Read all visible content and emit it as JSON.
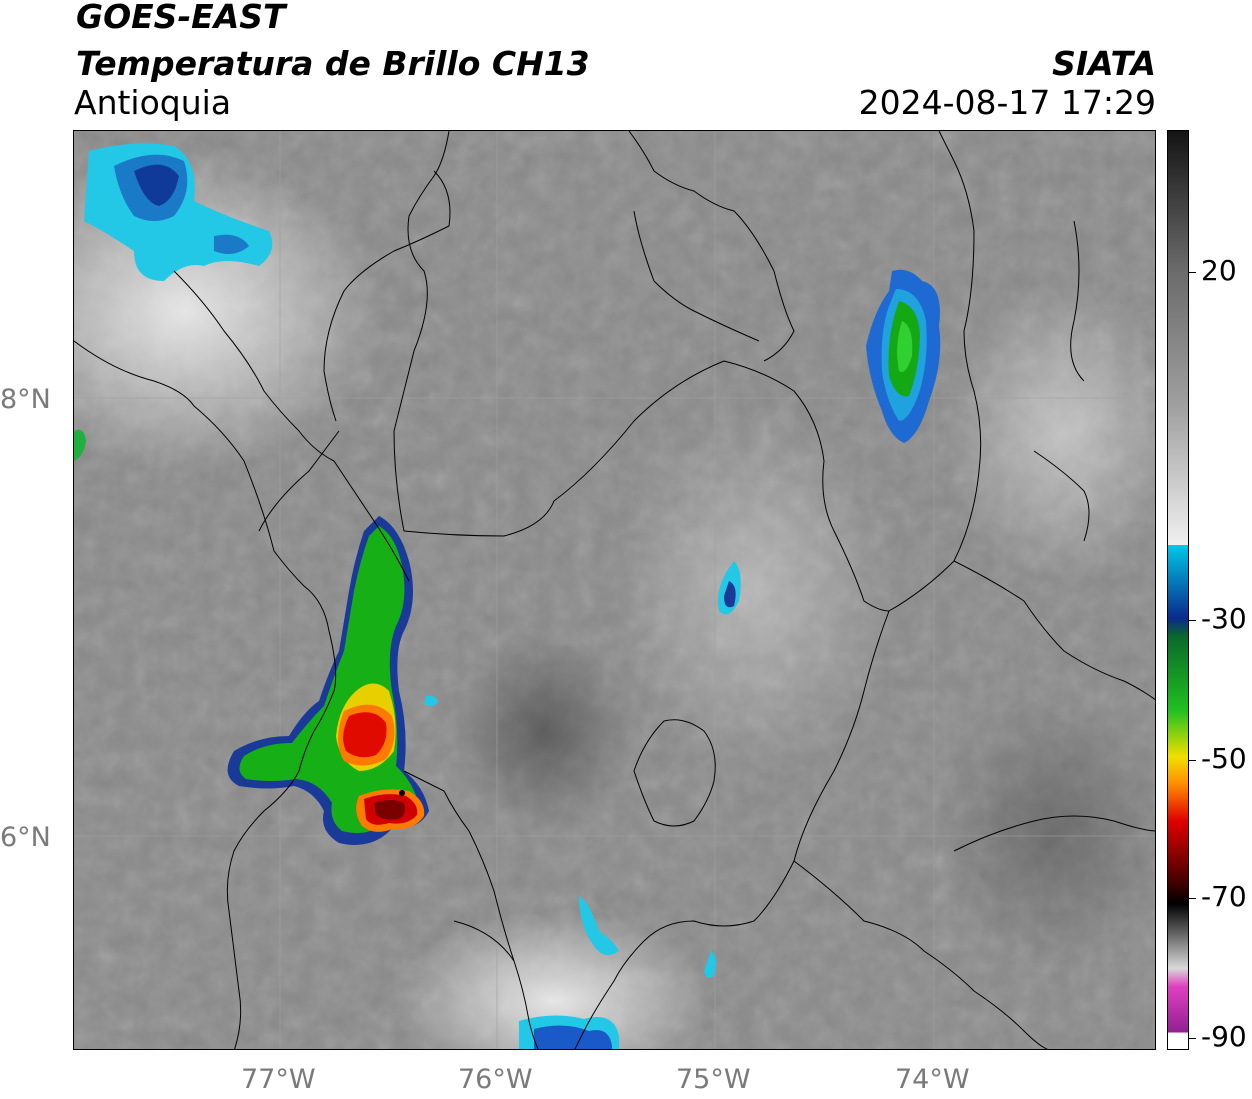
{
  "header": {
    "satellite": "GOES-EAST",
    "product": "Temperatura de Brillo CH13",
    "region": "Antioquia",
    "agency": "SIATA",
    "datetime": "2024-08-17 17:29"
  },
  "map": {
    "lat_labels": [
      "8°N",
      "6°N"
    ],
    "lon_labels": [
      "77°W",
      "76°W",
      "75°W",
      "74°W"
    ],
    "extent": {
      "lon_min": -77.95,
      "lon_max": -73.0,
      "lat_min": 5.03,
      "lat_max": 9.23
    },
    "gridlines": true,
    "features": [
      "cloud-top-temperature-field",
      "administrative-boundaries",
      "coastline"
    ],
    "convective_cells": [
      {
        "name": "cell-west-antioquia",
        "min_temp_c": -65
      },
      {
        "name": "cell-northeast",
        "min_temp_c": -40
      },
      {
        "name": "cell-northwest-coast",
        "min_temp_c": -35
      }
    ]
  },
  "colorbar": {
    "labels": [
      "20",
      "-30",
      "-50",
      "-70",
      "-90"
    ],
    "units": "",
    "colors": {
      "warm_dark": "#141414",
      "mid_gray": "#808080",
      "light": "#f0f0f0",
      "cyan": "#00c8e6",
      "blue": "#0a2a8c",
      "green": "#12b012",
      "yellow": "#f0e000",
      "orange": "#ff8c00",
      "red": "#e00000",
      "dark_red": "#5a0000",
      "black": "#000000",
      "magenta": "#c030b0",
      "purple": "#902090"
    }
  }
}
